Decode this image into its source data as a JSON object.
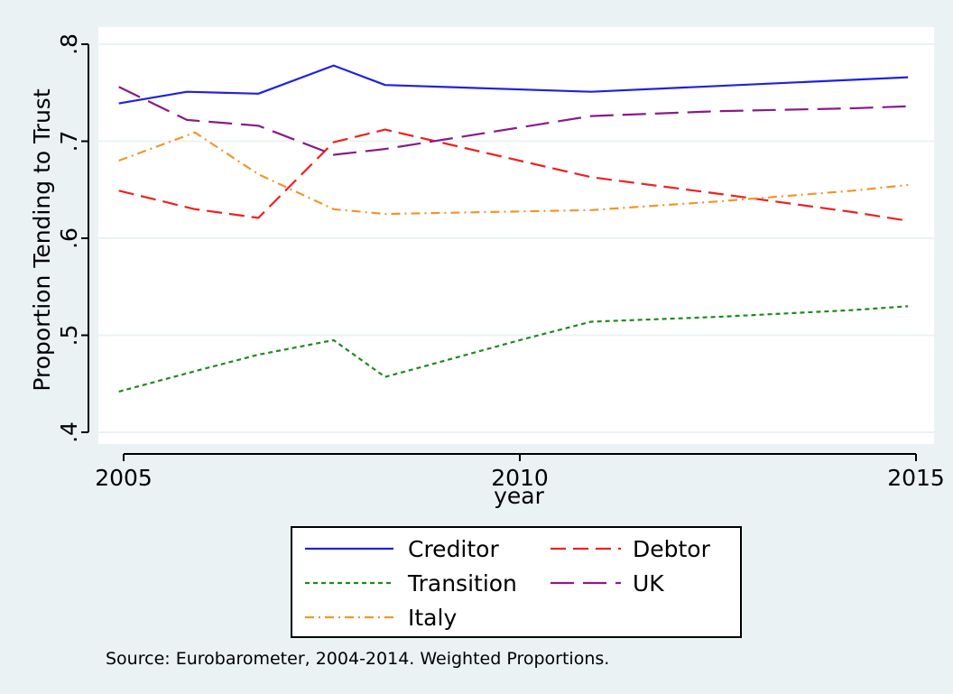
{
  "chart_data": {
    "type": "line",
    "xlabel": "year",
    "ylabel": "Proportion Tending to Trust",
    "xlim": [
      2004.94,
      2015.03
    ],
    "ylim": [
      0.38,
      0.81
    ],
    "xticks": [
      2005,
      2010,
      2015
    ],
    "xtick_labels": [
      "2005",
      "2010",
      "2015"
    ],
    "yticks": [
      0.4,
      0.5,
      0.6,
      0.7,
      0.8
    ],
    "ytick_labels": [
      ".4",
      ".5",
      ".6",
      ".7",
      ".8"
    ],
    "grid": true,
    "legend_position": "bottom",
    "note": "Source: Eurobarometer, 2004-2014. Weighted Proportions.",
    "series": [
      {
        "name": "Creditor",
        "color": "#1f1fe8",
        "dash": "solid",
        "x": [
          2004.94,
          2005.8,
          2006.7,
          2007.65,
          2008.3,
          2010.9,
          2014.9
        ],
        "y": [
          0.739,
          0.751,
          0.749,
          0.778,
          0.758,
          0.751,
          0.766
        ]
      },
      {
        "name": "Debtor",
        "color": "#ee2020",
        "dash": "long-dash",
        "x": [
          2004.94,
          2005.9,
          2006.7,
          2007.65,
          2008.3,
          2010.9,
          2012.5,
          2014.2,
          2014.9
        ],
        "y": [
          0.649,
          0.63,
          0.621,
          0.699,
          0.712,
          0.663,
          0.646,
          0.627,
          0.618
        ]
      },
      {
        "name": "Transition",
        "color": "#1e8a1e",
        "dash": "short-dash",
        "x": [
          2004.94,
          2005.9,
          2006.7,
          2007.65,
          2008.3,
          2010.0,
          2010.9,
          2012.5,
          2014.2,
          2014.9
        ],
        "y": [
          0.442,
          0.463,
          0.48,
          0.495,
          0.457,
          0.495,
          0.514,
          0.519,
          0.526,
          0.53
        ]
      },
      {
        "name": "UK",
        "color": "#8a1a8a",
        "dash": "long-dash-gap",
        "x": [
          2004.94,
          2005.8,
          2006.7,
          2007.65,
          2008.3,
          2010.9,
          2012.5,
          2014.2,
          2014.9
        ],
        "y": [
          0.756,
          0.722,
          0.716,
          0.686,
          0.692,
          0.726,
          0.731,
          0.734,
          0.736
        ]
      },
      {
        "name": "Italy",
        "color": "#f0962a",
        "dash": "dash-dot",
        "x": [
          2004.94,
          2005.9,
          2006.7,
          2007.65,
          2008.3,
          2010.9,
          2012.5,
          2014.2,
          2014.9
        ],
        "y": [
          0.68,
          0.709,
          0.666,
          0.63,
          0.625,
          0.629,
          0.638,
          0.649,
          0.655
        ]
      }
    ]
  },
  "colors": {
    "background_outer": "#eaf2f3",
    "plot_background": "#ffffff",
    "grid": "#eaf2f3"
  }
}
